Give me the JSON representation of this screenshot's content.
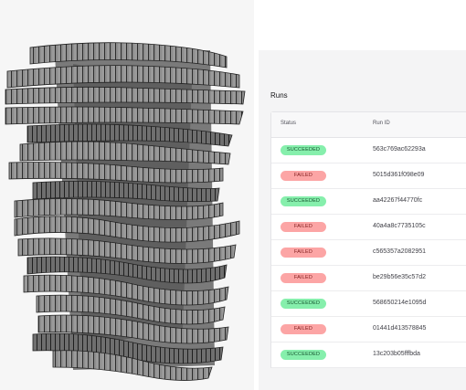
{
  "runs": {
    "title": "Runs",
    "columns": {
      "status": "Status",
      "run_id": "Run ID"
    },
    "rows": [
      {
        "status": "SUCCEEDED",
        "run_id": "563c769ac62293a"
      },
      {
        "status": "FAILED",
        "run_id": "5015d361f098e09"
      },
      {
        "status": "SUCCEEDED",
        "run_id": "aa42267f44770fc"
      },
      {
        "status": "FAILED",
        "run_id": "40a4a8c7735105c"
      },
      {
        "status": "FAILED",
        "run_id": "c565357a2082951"
      },
      {
        "status": "FAILED",
        "run_id": "be29b56e35c57d2"
      },
      {
        "status": "SUCCEEDED",
        "run_id": "568650214e1095d"
      },
      {
        "status": "FAILED",
        "run_id": "01441d413578845"
      },
      {
        "status": "SUCCEEDED",
        "run_id": "13c203b05fffbda"
      }
    ]
  },
  "colors": {
    "succeeded_badge": "#86efac",
    "failed_badge": "#fca5a5",
    "panel_background": "#f4f4f5"
  }
}
